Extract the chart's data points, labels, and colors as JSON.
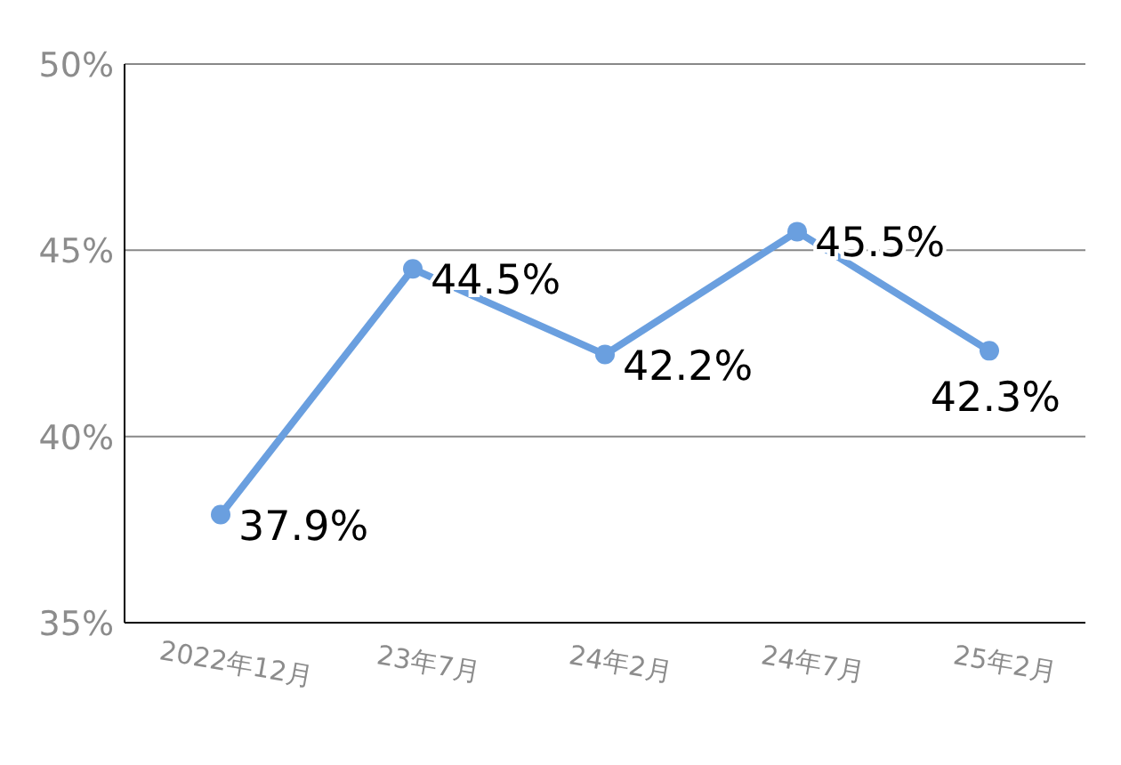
{
  "chart_data": {
    "type": "line",
    "categories": [
      "2022年12月",
      "23年7月",
      "24年2月",
      "24年7月",
      "25年2月"
    ],
    "series": [
      {
        "color": "#6a9fdf",
        "values": [
          37.9,
          44.5,
          42.2,
          45.5,
          42.3
        ],
        "value_labels": [
          "37.9%",
          "44.5%",
          "42.2%",
          "45.5%",
          "42.3%"
        ]
      }
    ],
    "ylim": [
      35,
      50
    ],
    "yticks": [
      {
        "value": 35,
        "label": "35%"
      },
      {
        "value": 40,
        "label": "40%"
      },
      {
        "value": 45,
        "label": "45%"
      },
      {
        "value": 50,
        "label": "50%"
      }
    ],
    "grid": "y",
    "marker": "circle",
    "line_style": "solid"
  }
}
